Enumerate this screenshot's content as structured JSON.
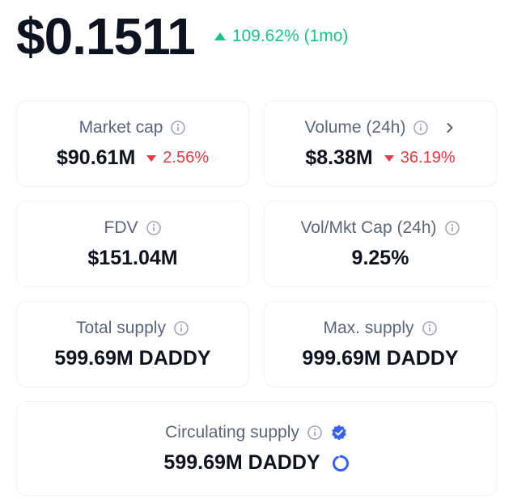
{
  "price": {
    "value": "$0.1511",
    "change": "109.62% (1mo)",
    "change_direction": "up",
    "change_color": "#16c784"
  },
  "stats": {
    "market_cap": {
      "label": "Market cap",
      "value": "$90.61M",
      "change": "2.56%",
      "change_direction": "down",
      "icon": "info-icon"
    },
    "volume_24h": {
      "label": "Volume (24h)",
      "value": "$8.38M",
      "change": "36.19%",
      "change_direction": "down",
      "icon": "info-icon"
    },
    "fdv": {
      "label": "FDV",
      "value": "$151.04M",
      "icon": "info-icon"
    },
    "vol_mkt_cap": {
      "label": "Vol/Mkt Cap (24h)",
      "value": "9.25%",
      "icon": "info-icon"
    },
    "total_supply": {
      "label": "Total supply",
      "value": "599.69M DADDY",
      "icon": "info-icon"
    },
    "max_supply": {
      "label": "Max. supply",
      "value": "999.69M DADDY",
      "icon": "info-icon"
    },
    "circulating_supply": {
      "label": "Circulating supply",
      "value": "599.69M DADDY",
      "icon": "info-icon",
      "badge_icon": "verified-check-icon",
      "progress_icon": "supply-progress-ring-icon",
      "progress_fraction": 1.0
    }
  },
  "colors": {
    "text_primary": "#0d1421",
    "text_secondary": "#58667e",
    "positive": "#16c784",
    "negative": "#ea3943",
    "border": "#eff2f5",
    "verified": "#3861fb"
  }
}
